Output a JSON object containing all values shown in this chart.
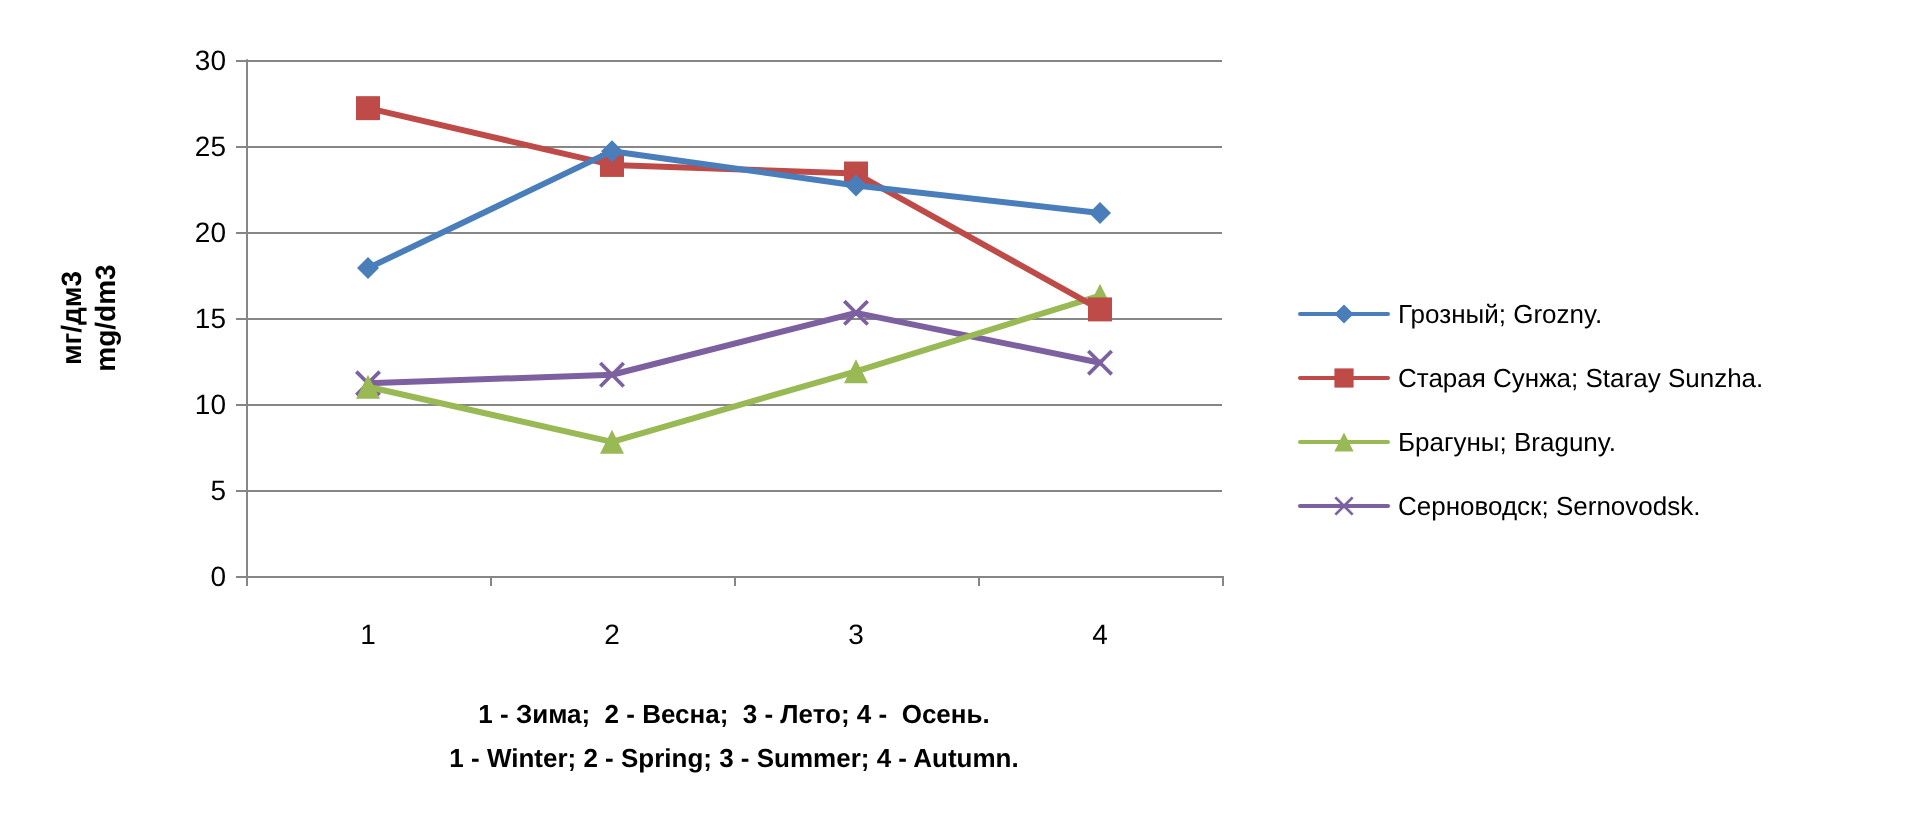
{
  "chart_data": {
    "type": "line",
    "categories": [
      "1",
      "2",
      "3",
      "4"
    ],
    "xlabel": "1 - Зима;  2 - Весна;  3 - Лето; 4 -  Осень.\n1 - Winter; 2 - Spring; 3 - Summer; 4 - Autumn.",
    "ylabel": "мг/дм3\nmg/dm3",
    "ylim": [
      0,
      30
    ],
    "yticks": [
      0,
      5,
      10,
      15,
      20,
      25,
      30
    ],
    "grid": "y",
    "legend": "right",
    "series": [
      {
        "name": "Грозный; Grozny.",
        "color": "#4a7ebb",
        "marker": "diamond",
        "values": [
          17.9,
          24.7,
          22.7,
          21.1
        ]
      },
      {
        "name": "Старая Сунжа; Staray Sunzha.",
        "color": "#be4b48",
        "marker": "square",
        "values": [
          27.2,
          23.9,
          23.4,
          15.5
        ]
      },
      {
        "name": "Брагуны; Braguny.",
        "color": "#98b954",
        "marker": "triangle",
        "values": [
          11,
          7.8,
          11.9,
          16.3
        ]
      },
      {
        "name": "Серноводск; Sernovodsk.",
        "color": "#7d60a0",
        "marker": "cross",
        "values": [
          11.2,
          11.7,
          15.3,
          12.4
        ]
      }
    ]
  }
}
